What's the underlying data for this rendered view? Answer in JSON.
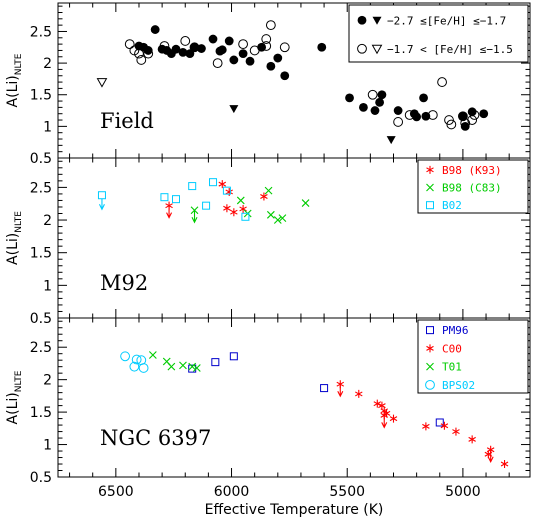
{
  "xlabel": "Effective Temperature (K)",
  "ylabel": "A(Li)",
  "ylabel_sub": "NLTE",
  "xlim": [
    6750,
    4710
  ],
  "x_ticks": [
    6500,
    6000,
    5500,
    5000
  ],
  "colors": {
    "black": "#000000",
    "red": "#ff0000",
    "green": "#00cc00",
    "cyan": "#00ccff",
    "blue": "#0000cc"
  },
  "chart_data": [
    {
      "type": "scatter",
      "panel": "Field",
      "ylim": [
        0.5,
        2.95
      ],
      "y_ticks": [
        0.5,
        1,
        1.5,
        2,
        2.5
      ],
      "legend": [
        {
          "label": "−2.7 ≤[Fe/H] ≤−1.7",
          "markers": [
            "filled-circle",
            "filled-triangle"
          ],
          "color": "#000000"
        },
        {
          "label": "−1.7 < [Fe/H] ≤−1.5",
          "markers": [
            "open-circle",
            "open-triangle"
          ],
          "color": "#000000"
        }
      ],
      "series": [
        {
          "marker": "filled-circle",
          "color": "#000000",
          "points": [
            [
              6400,
              2.27
            ],
            [
              6380,
              2.25
            ],
            [
              6360,
              2.2
            ],
            [
              6330,
              2.53
            ],
            [
              6300,
              2.22
            ],
            [
              6280,
              2.2
            ],
            [
              6260,
              2.15
            ],
            [
              6240,
              2.22
            ],
            [
              6210,
              2.17
            ],
            [
              6180,
              2.15
            ],
            [
              6160,
              2.25
            ],
            [
              6130,
              2.23
            ],
            [
              6080,
              2.38
            ],
            [
              6050,
              2.19
            ],
            [
              6040,
              2.21
            ],
            [
              6010,
              2.35
            ],
            [
              5990,
              2.05
            ],
            [
              5950,
              2.15
            ],
            [
              5920,
              2.03
            ],
            [
              5870,
              2.25
            ],
            [
              5830,
              1.95
            ],
            [
              5800,
              2.08
            ],
            [
              5770,
              1.8
            ],
            [
              5610,
              2.25
            ],
            [
              5490,
              1.45
            ],
            [
              5430,
              1.3
            ],
            [
              5380,
              1.25
            ],
            [
              5360,
              1.38
            ],
            [
              5350,
              1.5
            ],
            [
              5280,
              1.25
            ],
            [
              5210,
              1.2
            ],
            [
              5200,
              1.15
            ],
            [
              5170,
              1.45
            ],
            [
              5160,
              1.16
            ],
            [
              5000,
              1.16
            ],
            [
              4990,
              1.0
            ],
            [
              4960,
              1.23
            ],
            [
              4910,
              1.2
            ]
          ]
        },
        {
          "marker": "open-circle",
          "color": "#000000",
          "points": [
            [
              6440,
              2.3
            ],
            [
              6420,
              2.2
            ],
            [
              6400,
              2.15
            ],
            [
              6390,
              2.05
            ],
            [
              6360,
              2.15
            ],
            [
              6290,
              2.27
            ],
            [
              6200,
              2.35
            ],
            [
              6160,
              2.25
            ],
            [
              6060,
              2.0
            ],
            [
              5950,
              2.3
            ],
            [
              5900,
              2.2
            ],
            [
              5850,
              2.38
            ],
            [
              5850,
              2.27
            ],
            [
              5830,
              2.6
            ],
            [
              5770,
              2.25
            ],
            [
              5390,
              1.5
            ],
            [
              5280,
              1.07
            ],
            [
              5230,
              1.18
            ],
            [
              5130,
              1.18
            ],
            [
              5090,
              1.7
            ],
            [
              5060,
              1.1
            ],
            [
              5050,
              1.03
            ],
            [
              5000,
              1.16
            ],
            [
              4990,
              1.05
            ],
            [
              4960,
              1.1
            ],
            [
              4950,
              1.18
            ]
          ]
        },
        {
          "marker": "filled-triangle",
          "color": "#000000",
          "points": [
            [
              5990,
              1.28
            ],
            [
              5310,
              0.79
            ]
          ]
        },
        {
          "marker": "open-triangle",
          "color": "#000000",
          "points": [
            [
              6560,
              1.7
            ]
          ]
        }
      ]
    },
    {
      "type": "scatter",
      "panel": "M92",
      "ylim": [
        0.5,
        2.95
      ],
      "y_ticks": [
        0.5,
        1,
        1.5,
        2,
        2.5
      ],
      "legend": [
        {
          "label": "B98 (K93)",
          "marker": "asterisk",
          "color": "#ff0000"
        },
        {
          "label": "B98 (C83)",
          "marker": "cross",
          "color": "#00cc00"
        },
        {
          "label": "B02",
          "marker": "open-square",
          "color": "#00ccff"
        }
      ],
      "series": [
        {
          "marker": "asterisk",
          "color": "#ff0000",
          "points": [
            [
              6040,
              2.55
            ],
            [
              6020,
              2.18
            ],
            [
              5990,
              2.12
            ],
            [
              6010,
              2.43
            ],
            [
              5860,
              2.36
            ],
            [
              5950,
              2.17
            ]
          ]
        },
        {
          "marker": "asterisk-limit",
          "color": "#ff0000",
          "points": [
            [
              6270,
              2.22
            ]
          ]
        },
        {
          "marker": "cross",
          "color": "#00cc00",
          "points": [
            [
              5840,
              2.45
            ],
            [
              5830,
              2.08
            ],
            [
              5800,
              2.0
            ],
            [
              5780,
              2.03
            ],
            [
              5680,
              2.26
            ],
            [
              5960,
              2.3
            ],
            [
              5930,
              2.1
            ]
          ]
        },
        {
          "marker": "cross-limit",
          "color": "#00cc00",
          "points": [
            [
              6160,
              2.15
            ]
          ]
        },
        {
          "marker": "open-square",
          "color": "#00ccff",
          "points": [
            [
              6290,
              2.35
            ],
            [
              6240,
              2.32
            ],
            [
              6170,
              2.52
            ],
            [
              6110,
              2.22
            ],
            [
              6080,
              2.58
            ],
            [
              6020,
              2.45
            ],
            [
              5940,
              2.05
            ]
          ]
        },
        {
          "marker": "square-limit",
          "color": "#00ccff",
          "points": [
            [
              6560,
              2.38
            ]
          ]
        }
      ]
    },
    {
      "type": "scatter",
      "panel": "NGC 6397",
      "ylim": [
        0.5,
        2.95
      ],
      "y_ticks": [
        0.5,
        1,
        1.5,
        2,
        2.5
      ],
      "legend": [
        {
          "label": "PM96",
          "marker": "open-square",
          "color": "#0000cc"
        },
        {
          "label": "C00",
          "marker": "asterisk",
          "color": "#ff0000"
        },
        {
          "label": "T01",
          "marker": "cross",
          "color": "#00cc00"
        },
        {
          "label": "BPS02",
          "marker": "open-circle",
          "color": "#00ccff"
        }
      ],
      "series": [
        {
          "marker": "open-square",
          "color": "#0000cc",
          "points": [
            [
              6170,
              2.17
            ],
            [
              6070,
              2.27
            ],
            [
              5990,
              2.36
            ],
            [
              5600,
              1.87
            ],
            [
              5100,
              1.34
            ]
          ]
        },
        {
          "marker": "asterisk",
          "color": "#ff0000",
          "points": [
            [
              5450,
              1.78
            ],
            [
              5370,
              1.63
            ],
            [
              5350,
              1.6
            ],
            [
              5340,
              1.52
            ],
            [
              5330,
              1.48
            ],
            [
              5300,
              1.4
            ],
            [
              5160,
              1.28
            ],
            [
              5080,
              1.29
            ],
            [
              5030,
              1.2
            ],
            [
              4960,
              1.08
            ],
            [
              4890,
              0.85
            ],
            [
              4820,
              0.7
            ]
          ]
        },
        {
          "marker": "asterisk-limit",
          "color": "#ff0000",
          "points": [
            [
              5530,
              1.93
            ],
            [
              5340,
              1.45
            ],
            [
              4880,
              0.92
            ]
          ]
        },
        {
          "marker": "cross",
          "color": "#00cc00",
          "points": [
            [
              6340,
              2.38
            ],
            [
              6280,
              2.28
            ],
            [
              6260,
              2.2
            ],
            [
              6210,
              2.22
            ],
            [
              6170,
              2.2
            ],
            [
              6150,
              2.18
            ]
          ]
        },
        {
          "marker": "open-circle",
          "color": "#00ccff",
          "points": [
            [
              6460,
              2.36
            ],
            [
              6420,
              2.2
            ],
            [
              6410,
              2.31
            ],
            [
              6390,
              2.3
            ],
            [
              6380,
              2.18
            ]
          ]
        }
      ]
    }
  ]
}
